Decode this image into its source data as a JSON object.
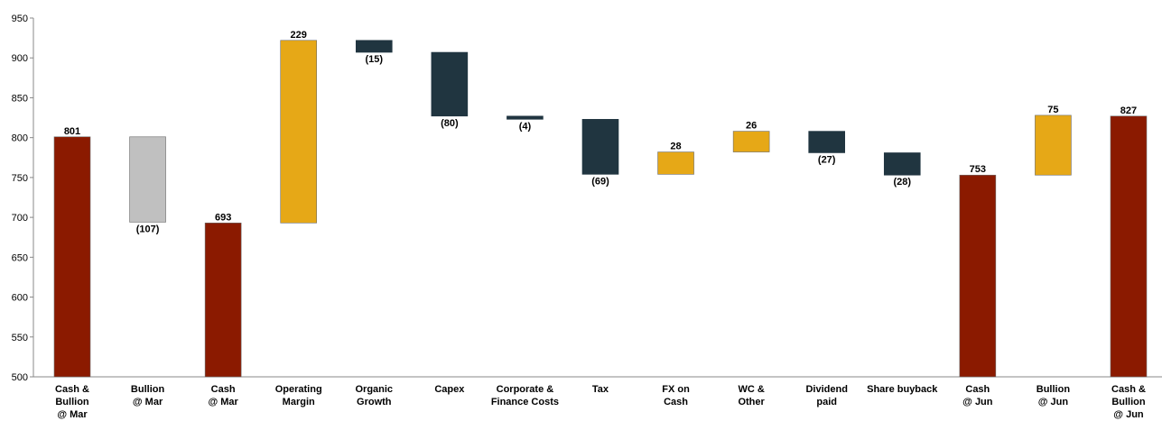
{
  "chart_data": {
    "type": "bar",
    "subtype": "waterfall",
    "ylim": [
      500,
      950
    ],
    "yticks": [
      "500",
      "550",
      "600",
      "650",
      "700",
      "750",
      "800",
      "850",
      "900",
      "950"
    ],
    "grid": false,
    "legend": "none",
    "colors": {
      "total": "#8B1A00",
      "bullion_out": "#C0C0C0",
      "increase": "#E6A817",
      "decrease": "#203540"
    },
    "bars": [
      {
        "category": [
          "Cash &",
          "Bullion",
          "@ Mar"
        ],
        "start": 500,
        "end": 801,
        "label": "801",
        "kind": "total"
      },
      {
        "category": [
          "Bullion",
          "@ Mar"
        ],
        "start": 801,
        "end": 694,
        "label": "(107)",
        "kind": "bullion_out"
      },
      {
        "category": [
          "Cash",
          "@ Mar"
        ],
        "start": 500,
        "end": 693,
        "label": "693",
        "kind": "total"
      },
      {
        "category": [
          "Operating",
          "Margin"
        ],
        "start": 693,
        "end": 922,
        "label": "229",
        "kind": "increase"
      },
      {
        "category": [
          "Organic",
          "Growth"
        ],
        "start": 922,
        "end": 907,
        "label": "(15)",
        "kind": "decrease"
      },
      {
        "category": [
          "Capex"
        ],
        "start": 907,
        "end": 827,
        "label": "(80)",
        "kind": "decrease"
      },
      {
        "category": [
          "Corporate &",
          "Finance Costs"
        ],
        "start": 827,
        "end": 823,
        "label": "(4)",
        "kind": "decrease"
      },
      {
        "category": [
          "Tax"
        ],
        "start": 823,
        "end": 754,
        "label": "(69)",
        "kind": "decrease"
      },
      {
        "category": [
          "FX on",
          "Cash"
        ],
        "start": 754,
        "end": 782,
        "label": "28",
        "kind": "increase"
      },
      {
        "category": [
          "WC &",
          "Other"
        ],
        "start": 782,
        "end": 808,
        "label": "26",
        "kind": "increase"
      },
      {
        "category": [
          "Dividend",
          "paid"
        ],
        "start": 808,
        "end": 781,
        "label": "(27)",
        "kind": "decrease"
      },
      {
        "category": [
          "Share buyback"
        ],
        "start": 781,
        "end": 753,
        "label": "(28)",
        "kind": "decrease"
      },
      {
        "category": [
          "Cash",
          "@ Jun"
        ],
        "start": 500,
        "end": 753,
        "label": "753",
        "kind": "total"
      },
      {
        "category": [
          "Bullion",
          "@ Jun"
        ],
        "start": 753,
        "end": 828,
        "label": "75",
        "kind": "increase"
      },
      {
        "category": [
          "Cash &",
          "Bullion",
          "@ Jun"
        ],
        "start": 500,
        "end": 827,
        "label": "827",
        "kind": "total"
      }
    ]
  }
}
